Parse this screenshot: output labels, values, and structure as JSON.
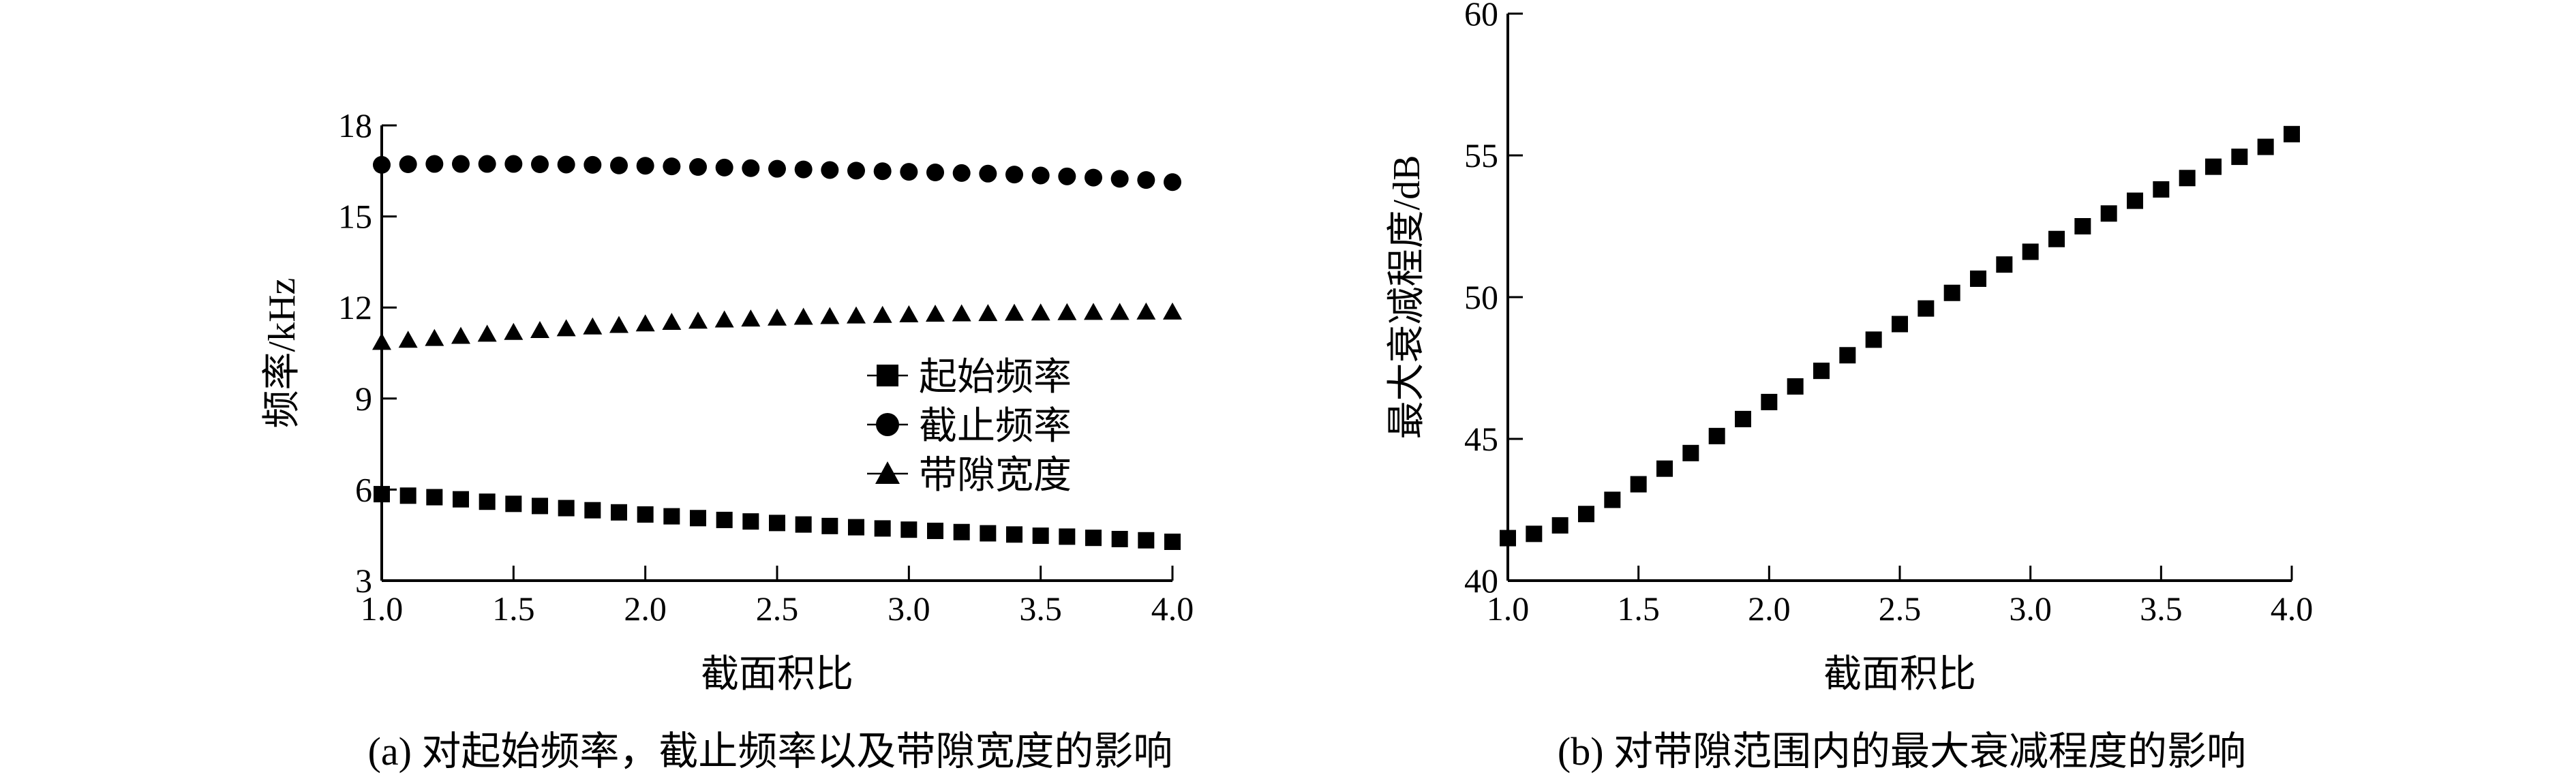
{
  "chart_data": [
    {
      "type": "scatter",
      "caption": "(a) 对起始频率，截止频率以及带隙宽度的影响",
      "xlabel": "截面积比",
      "ylabel": "频率/kHz",
      "xlim": [
        1.0,
        4.0
      ],
      "ylim": [
        3,
        18
      ],
      "xticks": [
        "1.0",
        "1.5",
        "2.0",
        "2.5",
        "3.0",
        "3.5",
        "4.0"
      ],
      "yticks": [
        "3",
        "6",
        "9",
        "12",
        "15",
        "18"
      ],
      "legend_position": "center-right",
      "x": [
        1.0,
        1.1,
        1.2,
        1.3,
        1.4,
        1.5,
        1.6,
        1.7,
        1.8,
        1.9,
        2.0,
        2.1,
        2.2,
        2.3,
        2.4,
        2.5,
        2.6,
        2.7,
        2.8,
        2.9,
        3.0,
        3.1,
        3.2,
        3.3,
        3.4,
        3.5,
        3.6,
        3.7,
        3.8,
        3.9,
        4.0
      ],
      "series": [
        {
          "name": "起始频率",
          "marker": "square",
          "values": [
            5.85,
            5.8,
            5.75,
            5.68,
            5.6,
            5.53,
            5.46,
            5.39,
            5.32,
            5.25,
            5.18,
            5.12,
            5.06,
            5.0,
            4.95,
            4.9,
            4.85,
            4.8,
            4.76,
            4.72,
            4.68,
            4.64,
            4.6,
            4.56,
            4.52,
            4.48,
            4.45,
            4.41,
            4.37,
            4.33,
            4.28
          ]
        },
        {
          "name": "截止频率",
          "marker": "circle",
          "values": [
            16.7,
            16.72,
            16.73,
            16.73,
            16.73,
            16.73,
            16.72,
            16.71,
            16.7,
            16.68,
            16.67,
            16.65,
            16.63,
            16.61,
            16.59,
            16.57,
            16.55,
            16.53,
            16.51,
            16.49,
            16.47,
            16.45,
            16.43,
            16.41,
            16.38,
            16.35,
            16.32,
            16.28,
            16.24,
            16.2,
            16.13
          ]
        },
        {
          "name": "带隙宽度",
          "marker": "triangle",
          "values": [
            10.85,
            10.92,
            10.98,
            11.05,
            11.12,
            11.18,
            11.24,
            11.3,
            11.36,
            11.41,
            11.46,
            11.51,
            11.55,
            11.59,
            11.62,
            11.65,
            11.68,
            11.7,
            11.72,
            11.74,
            11.76,
            11.78,
            11.79,
            11.8,
            11.81,
            11.82,
            11.83,
            11.84,
            11.84,
            11.85,
            11.85
          ]
        }
      ]
    },
    {
      "type": "scatter",
      "caption": "(b) 对带隙范围内的最大衰减程度的影响",
      "xlabel": "截面积比",
      "ylabel": "最大衰减程度/dB",
      "xlim": [
        1.0,
        4.0
      ],
      "ylim": [
        40,
        60
      ],
      "xticks": [
        "1.0",
        "1.5",
        "2.0",
        "2.5",
        "3.0",
        "3.5",
        "4.0"
      ],
      "yticks": [
        "40",
        "45",
        "50",
        "55",
        "60"
      ],
      "x": [
        1.0,
        1.1,
        1.2,
        1.3,
        1.4,
        1.5,
        1.6,
        1.7,
        1.8,
        1.9,
        2.0,
        2.1,
        2.2,
        2.3,
        2.4,
        2.5,
        2.6,
        2.7,
        2.8,
        2.9,
        3.0,
        3.1,
        3.2,
        3.3,
        3.4,
        3.5,
        3.6,
        3.7,
        3.8,
        3.9,
        4.0
      ],
      "series": [
        {
          "name": "",
          "marker": "square",
          "values": [
            41.5,
            41.65,
            41.95,
            42.35,
            42.85,
            43.4,
            43.95,
            44.5,
            45.1,
            45.7,
            46.3,
            46.85,
            47.4,
            47.95,
            48.5,
            49.05,
            49.6,
            50.15,
            50.65,
            51.15,
            51.6,
            52.05,
            52.5,
            52.95,
            53.4,
            53.8,
            54.2,
            54.6,
            54.95,
            55.3,
            55.75
          ]
        }
      ]
    }
  ]
}
